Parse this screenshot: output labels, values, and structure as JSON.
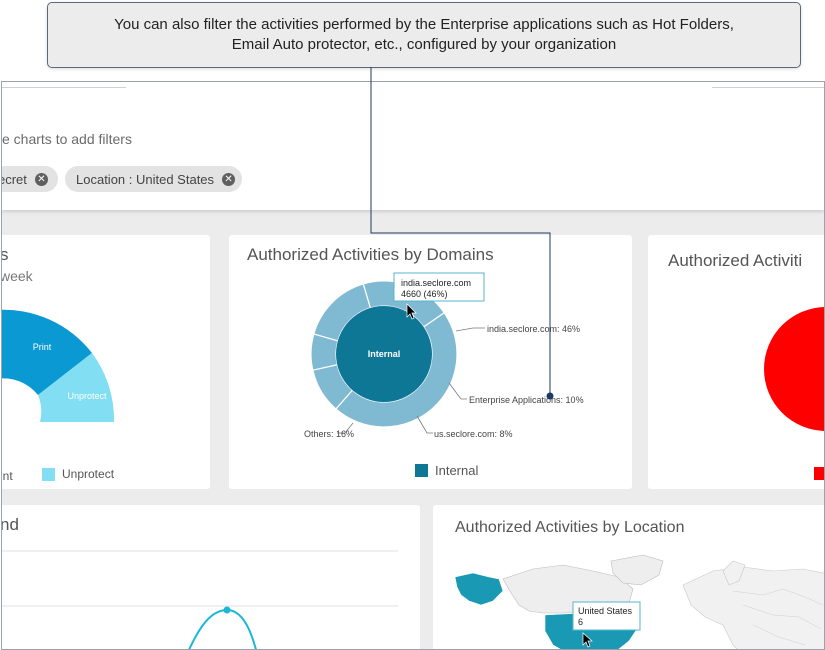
{
  "callout": {
    "line1": "You can also filter the activities performed by the Enterprise applications such as Hot Folders,",
    "line2": "Email Auto protector, etc., configured by your organization"
  },
  "filters": {
    "hint": "e charts to add filters",
    "chips": [
      {
        "label": "ecret"
      },
      {
        "label": "Location : United States"
      }
    ]
  },
  "card_left": {
    "title": "s",
    "subtitle": "week",
    "legend": [
      {
        "label": "rint"
      },
      {
        "label": "Unprotect"
      }
    ]
  },
  "card_domains": {
    "title": "Authorized Activities by Domains",
    "legend": [
      {
        "label": "Internal",
        "color": "#0f7796"
      }
    ]
  },
  "card_right": {
    "title": "Authorized Activiti"
  },
  "card_trend": {
    "title": "nd"
  },
  "card_location": {
    "title": "Authorized Activities by Location",
    "tooltip": {
      "name": "United States",
      "value": "6"
    }
  },
  "chart_data": [
    {
      "type": "pie",
      "subtype": "semi-donut",
      "labels": [
        "Print",
        "Unprotect"
      ],
      "colors": [
        "#0b99d3",
        "#82def2"
      ]
    },
    {
      "type": "pie",
      "subtype": "sunburst",
      "inner": {
        "label": "Internal",
        "color": "#0f7796"
      },
      "slices": [
        {
          "label": "india.seclore.com: 46%",
          "percent": 46
        },
        {
          "label": "Enterprise Applications: 10%",
          "percent": 10
        },
        {
          "label": "us.seclore.com: 8%",
          "percent": 8
        },
        {
          "label": "Others: 16%",
          "percent": 16
        },
        {
          "label": "",
          "percent": 20
        }
      ],
      "ring_color": "#7fb9d2",
      "tooltip": {
        "name": "india.seclore.com",
        "value": "4660 (46%)"
      }
    },
    {
      "type": "pie",
      "color": "#ff0000"
    },
    {
      "type": "line",
      "color": "#1bb7d6"
    }
  ]
}
